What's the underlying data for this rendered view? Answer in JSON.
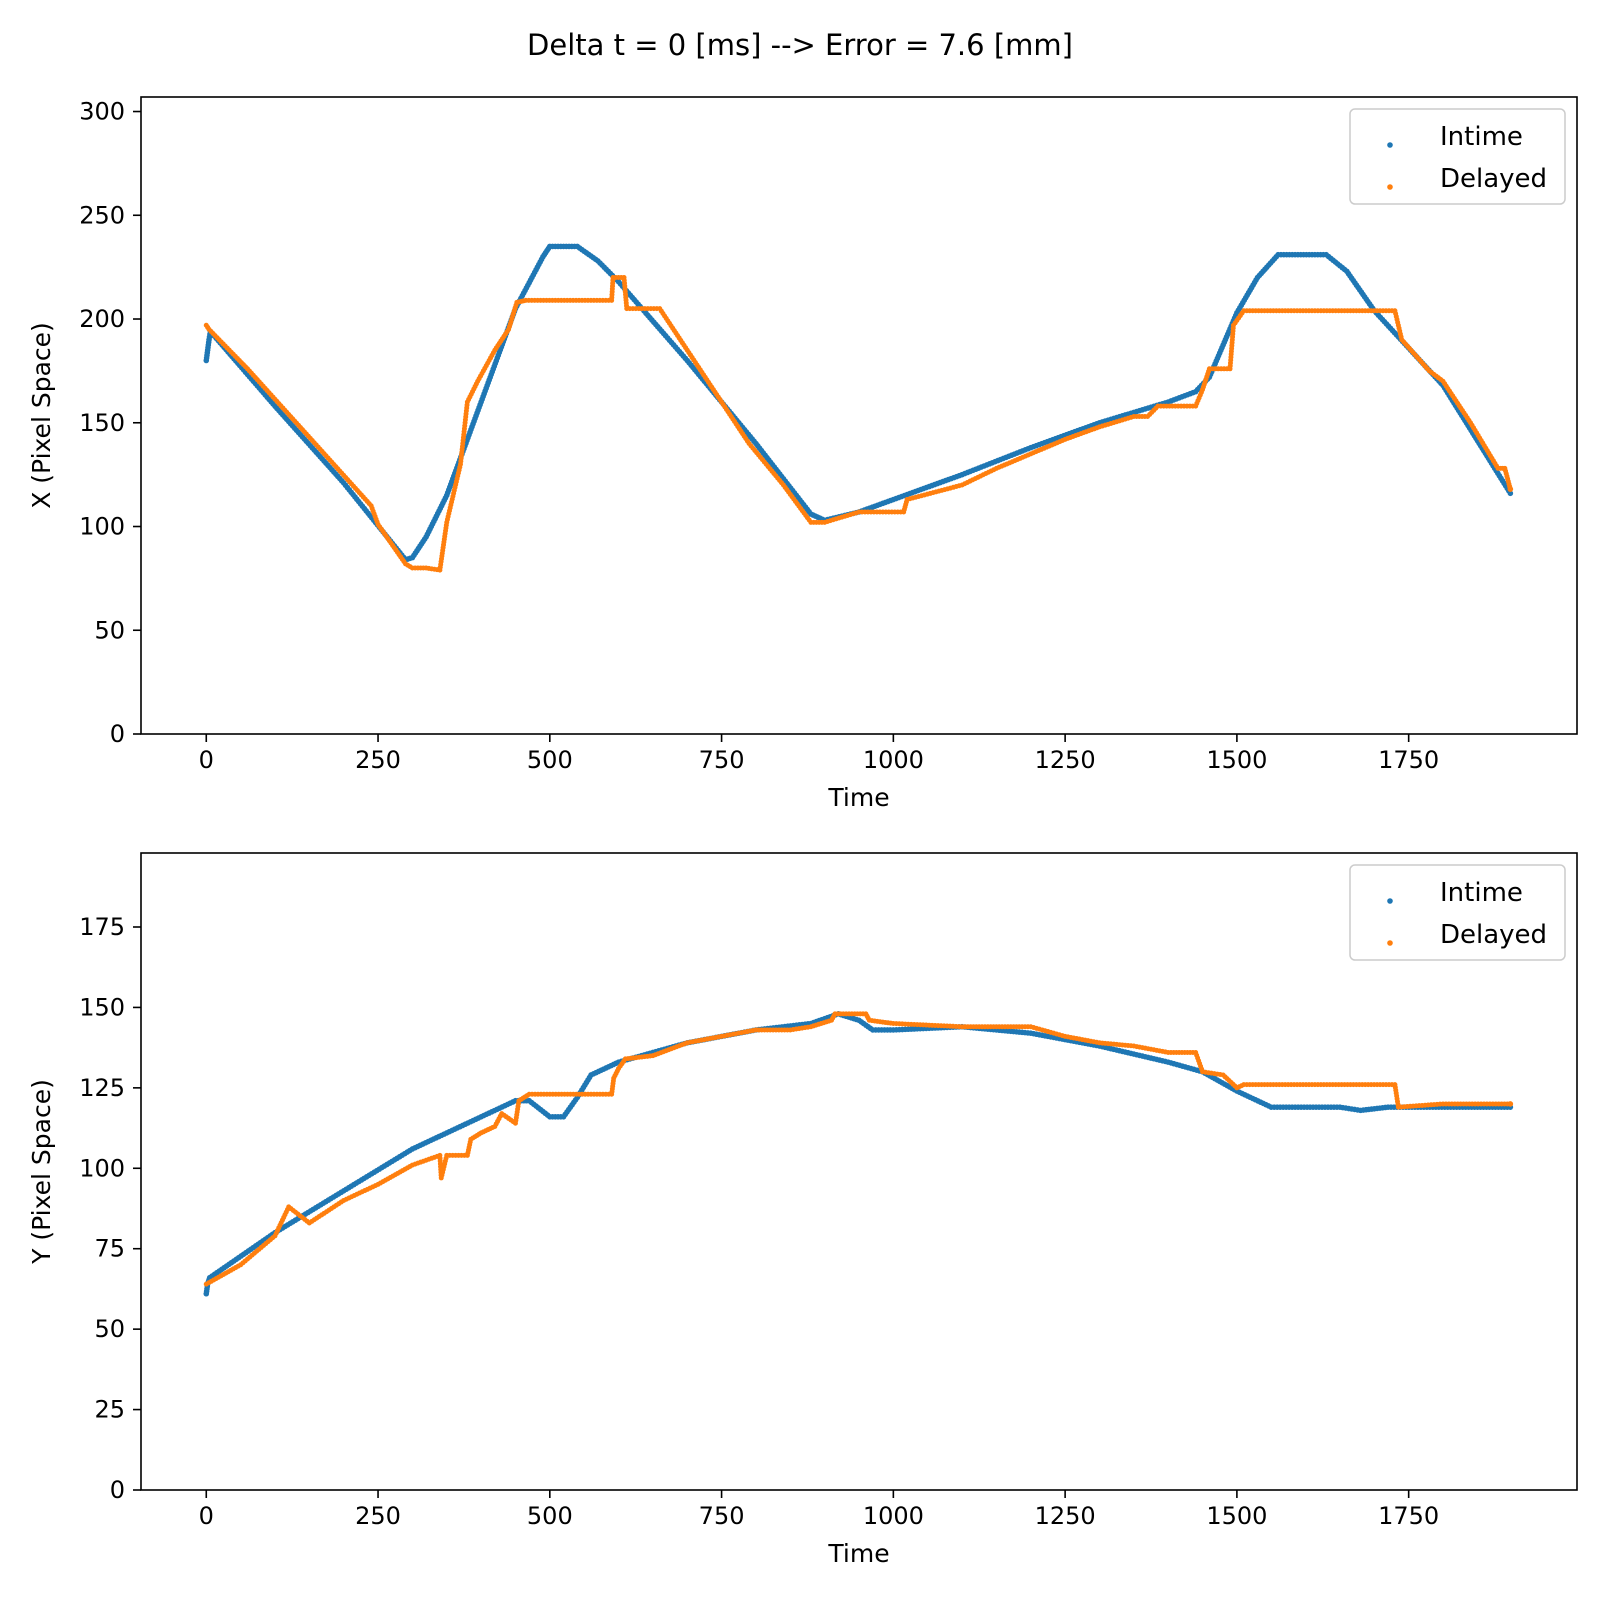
{
  "suptitle": "Delta t = 0 [ms] --> Error = 7.6 [mm]",
  "colors": {
    "intime": "#1f77b4",
    "delayed": "#ff7f0e"
  },
  "chart_data": [
    {
      "type": "scatter",
      "xlabel": "Time",
      "ylabel": "X (Pixel Space)",
      "xlim": [
        -95,
        1995
      ],
      "ylim": [
        0,
        307
      ],
      "xticks": [
        0,
        250,
        500,
        750,
        1000,
        1250,
        1500,
        1750
      ],
      "yticks": [
        0,
        50,
        100,
        150,
        200,
        250,
        300
      ],
      "legend": {
        "position": "top-right",
        "entries": [
          "Intime",
          "Delayed"
        ]
      },
      "series": [
        {
          "name": "Intime",
          "color": "#1f77b4",
          "points": [
            [
              0,
              180
            ],
            [
              2,
              185
            ],
            [
              4,
              190
            ],
            [
              6,
              194
            ],
            [
              100,
              158
            ],
            [
              200,
              121
            ],
            [
              290,
              84
            ],
            [
              300,
              85
            ],
            [
              320,
              95
            ],
            [
              350,
              115
            ],
            [
              400,
              160
            ],
            [
              450,
              205
            ],
            [
              490,
              230
            ],
            [
              500,
              235
            ],
            [
              540,
              235
            ],
            [
              570,
              228
            ],
            [
              600,
              218
            ],
            [
              700,
              180
            ],
            [
              800,
              140
            ],
            [
              880,
              106
            ],
            [
              900,
              103
            ],
            [
              950,
              107
            ],
            [
              1000,
              113
            ],
            [
              1100,
              125
            ],
            [
              1200,
              138
            ],
            [
              1300,
              150
            ],
            [
              1400,
              160
            ],
            [
              1440,
              165
            ],
            [
              1460,
              172
            ],
            [
              1500,
              203
            ],
            [
              1530,
              220
            ],
            [
              1560,
              231
            ],
            [
              1630,
              231
            ],
            [
              1660,
              223
            ],
            [
              1700,
              204
            ],
            [
              1800,
              168
            ],
            [
              1898,
              116
            ]
          ]
        },
        {
          "name": "Delayed",
          "color": "#ff7f0e",
          "points": [
            [
              0,
              197
            ],
            [
              2,
              196
            ],
            [
              4,
              195
            ],
            [
              60,
              176
            ],
            [
              120,
              154
            ],
            [
              180,
              132
            ],
            [
              240,
              110
            ],
            [
              250,
              101
            ],
            [
              290,
              82
            ],
            [
              300,
              80
            ],
            [
              320,
              80
            ],
            [
              340,
              79
            ],
            [
              350,
              102
            ],
            [
              370,
              130
            ],
            [
              380,
              160
            ],
            [
              395,
              170
            ],
            [
              420,
              185
            ],
            [
              440,
              195
            ],
            [
              452,
              208
            ],
            [
              465,
              209
            ],
            [
              590,
              209
            ],
            [
              592,
              220
            ],
            [
              608,
              220
            ],
            [
              612,
              205
            ],
            [
              660,
              205
            ],
            [
              700,
              185
            ],
            [
              750,
              160
            ],
            [
              790,
              140
            ],
            [
              840,
              120
            ],
            [
              880,
              102
            ],
            [
              900,
              102
            ],
            [
              950,
              107
            ],
            [
              1015,
              107
            ],
            [
              1020,
              113
            ],
            [
              1100,
              120
            ],
            [
              1150,
              128
            ],
            [
              1200,
              135
            ],
            [
              1250,
              142
            ],
            [
              1300,
              148
            ],
            [
              1350,
              153
            ],
            [
              1370,
              153
            ],
            [
              1385,
              158
            ],
            [
              1440,
              158
            ],
            [
              1450,
              166
            ],
            [
              1460,
              176
            ],
            [
              1490,
              176
            ],
            [
              1495,
              197
            ],
            [
              1510,
              204
            ],
            [
              1730,
              204
            ],
            [
              1740,
              190
            ],
            [
              1780,
              175
            ],
            [
              1800,
              170
            ],
            [
              1840,
              150
            ],
            [
              1880,
              128
            ],
            [
              1890,
              128
            ],
            [
              1898,
              118
            ]
          ]
        }
      ]
    },
    {
      "type": "scatter",
      "xlabel": "Time",
      "ylabel": "Y (Pixel Space)",
      "xlim": [
        -95,
        1995
      ],
      "ylim": [
        0,
        198
      ],
      "xticks": [
        0,
        250,
        500,
        750,
        1000,
        1250,
        1500,
        1750
      ],
      "yticks": [
        0,
        25,
        50,
        75,
        100,
        125,
        150,
        175
      ],
      "legend": {
        "position": "top-right",
        "entries": [
          "Intime",
          "Delayed"
        ]
      },
      "series": [
        {
          "name": "Intime",
          "color": "#1f77b4",
          "points": [
            [
              0,
              61
            ],
            [
              2,
              64
            ],
            [
              5,
              66
            ],
            [
              100,
              80
            ],
            [
              200,
              93
            ],
            [
              300,
              106
            ],
            [
              400,
              116
            ],
            [
              450,
              121
            ],
            [
              470,
              121
            ],
            [
              500,
              116
            ],
            [
              520,
              116
            ],
            [
              540,
              122
            ],
            [
              560,
              129
            ],
            [
              600,
              133
            ],
            [
              700,
              139
            ],
            [
              800,
              143
            ],
            [
              880,
              145
            ],
            [
              920,
              148
            ],
            [
              950,
              146
            ],
            [
              970,
              143
            ],
            [
              1000,
              143
            ],
            [
              1100,
              144
            ],
            [
              1200,
              142
            ],
            [
              1300,
              138
            ],
            [
              1400,
              133
            ],
            [
              1450,
              130
            ],
            [
              1500,
              124
            ],
            [
              1550,
              119
            ],
            [
              1650,
              119
            ],
            [
              1680,
              118
            ],
            [
              1720,
              119
            ],
            [
              1898,
              119
            ]
          ]
        },
        {
          "name": "Delayed",
          "color": "#ff7f0e",
          "points": [
            [
              0,
              64
            ],
            [
              50,
              70
            ],
            [
              100,
              79
            ],
            [
              120,
              88
            ],
            [
              150,
              83
            ],
            [
              200,
              90
            ],
            [
              250,
              95
            ],
            [
              300,
              101
            ],
            [
              340,
              104
            ],
            [
              342,
              97
            ],
            [
              350,
              104
            ],
            [
              380,
              104
            ],
            [
              385,
              109
            ],
            [
              400,
              111
            ],
            [
              420,
              113
            ],
            [
              430,
              117
            ],
            [
              450,
              114
            ],
            [
              455,
              121
            ],
            [
              470,
              123
            ],
            [
              590,
              123
            ],
            [
              593,
              128
            ],
            [
              600,
              131
            ],
            [
              610,
              134
            ],
            [
              650,
              135
            ],
            [
              700,
              139
            ],
            [
              750,
              141
            ],
            [
              800,
              143
            ],
            [
              850,
              143
            ],
            [
              880,
              144
            ],
            [
              910,
              146
            ],
            [
              915,
              148
            ],
            [
              960,
              148
            ],
            [
              965,
              146
            ],
            [
              1000,
              145
            ],
            [
              1100,
              144
            ],
            [
              1150,
              144
            ],
            [
              1200,
              144
            ],
            [
              1250,
              141
            ],
            [
              1300,
              139
            ],
            [
              1350,
              138
            ],
            [
              1400,
              136
            ],
            [
              1440,
              136
            ],
            [
              1450,
              130
            ],
            [
              1480,
              129
            ],
            [
              1500,
              125
            ],
            [
              1510,
              126
            ],
            [
              1730,
              126
            ],
            [
              1735,
              119
            ],
            [
              1800,
              120
            ],
            [
              1898,
              120
            ]
          ]
        }
      ]
    }
  ]
}
